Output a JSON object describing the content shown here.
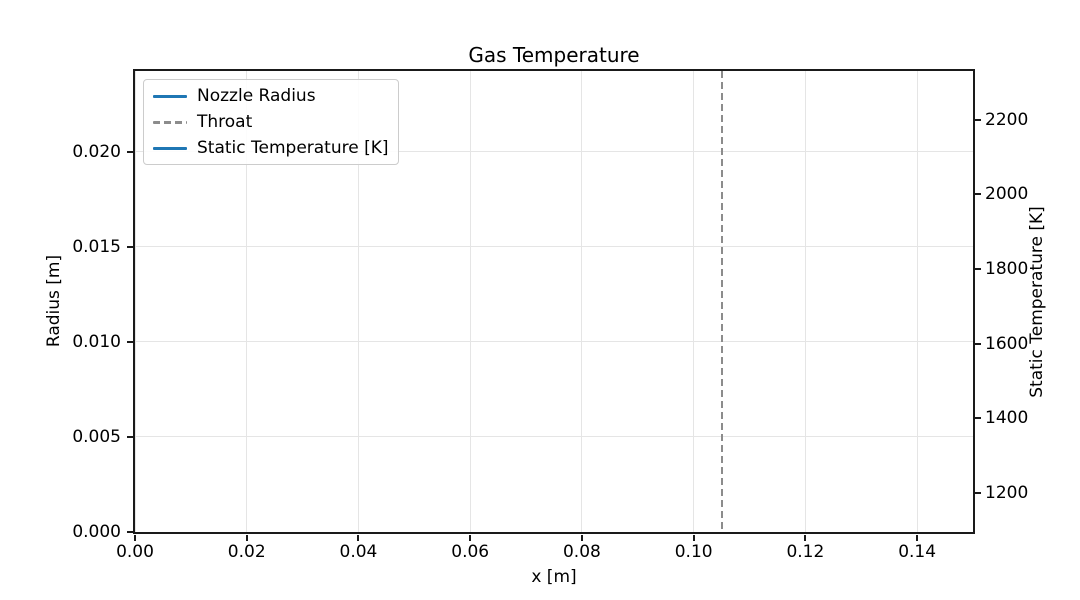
{
  "chart_data": {
    "type": "line",
    "title": "Gas Temperature",
    "xlabel": "x [m]",
    "ylabel_left": "Radius [m]",
    "ylabel_right": "Static Temperature [K]",
    "xlim": [
      0.0,
      0.15
    ],
    "ylim_left": [
      0.0,
      0.02425
    ],
    "ylim_right": [
      1095,
      2331
    ],
    "grid": true,
    "x_ticks": [
      {
        "value": 0.0,
        "label": "0.00"
      },
      {
        "value": 0.02,
        "label": "0.02"
      },
      {
        "value": 0.04,
        "label": "0.04"
      },
      {
        "value": 0.06,
        "label": "0.06"
      },
      {
        "value": 0.08,
        "label": "0.08"
      },
      {
        "value": 0.1,
        "label": "0.10"
      },
      {
        "value": 0.12,
        "label": "0.12"
      },
      {
        "value": 0.14,
        "label": "0.14"
      }
    ],
    "y_ticks_left": [
      {
        "value": 0.0,
        "label": "0.000"
      },
      {
        "value": 0.005,
        "label": "0.005"
      },
      {
        "value": 0.01,
        "label": "0.010"
      },
      {
        "value": 0.015,
        "label": "0.015"
      },
      {
        "value": 0.02,
        "label": "0.020"
      }
    ],
    "y_ticks_right": [
      {
        "value": 1200,
        "label": "1200"
      },
      {
        "value": 1400,
        "label": "1400"
      },
      {
        "value": 1600,
        "label": "1600"
      },
      {
        "value": 1800,
        "label": "1800"
      },
      {
        "value": 2000,
        "label": "2000"
      },
      {
        "value": 2200,
        "label": "2200"
      }
    ],
    "legend_entries": [
      {
        "label": "Nozzle Radius",
        "color": "#1f77b4",
        "linestyle": "solid"
      },
      {
        "label": "Throat",
        "color": "#8c8c8c",
        "linestyle": "dashed"
      },
      {
        "label": "Static Temperature [K]",
        "color": "#1f77b4",
        "linestyle": "solid"
      }
    ],
    "annotations": [
      {
        "type": "vline",
        "name": "Throat",
        "x": 0.105,
        "color": "#8c8c8c",
        "linestyle": "dashed"
      }
    ],
    "series": [
      {
        "name": "Nozzle Radius",
        "axis": "left",
        "points": []
      },
      {
        "name": "Static Temperature [K]",
        "axis": "right",
        "points": []
      }
    ],
    "colors": {
      "spine": "#1a1a1a",
      "grid": "#e5e5e5",
      "background": "#ffffff"
    }
  }
}
